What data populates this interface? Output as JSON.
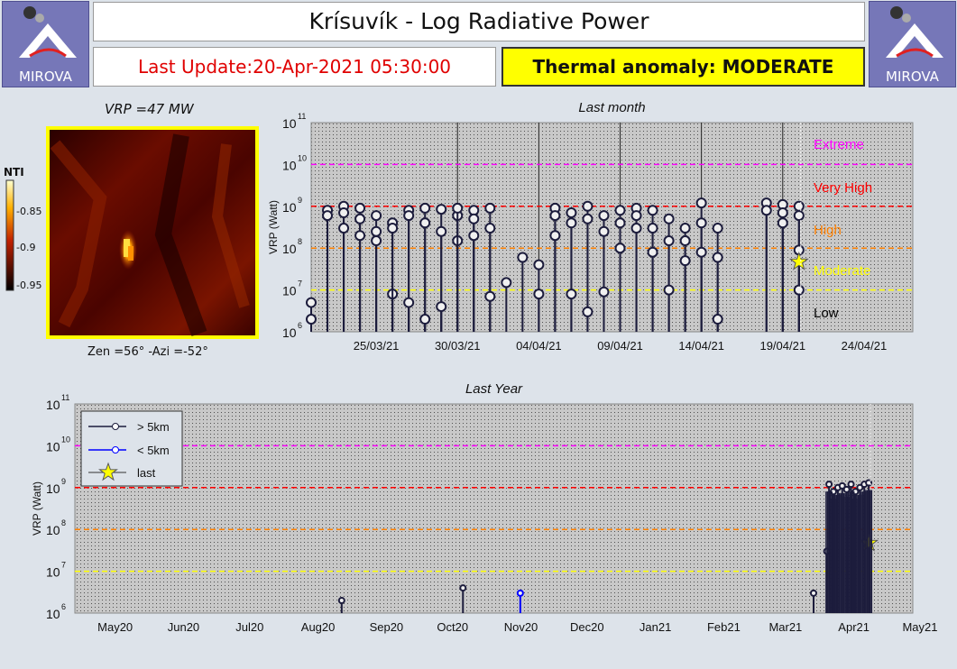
{
  "header": {
    "title": "Krísuvík - Log Radiative Power",
    "last_update": "Last Update:20-Apr-2021 05:30:00",
    "anomaly": "Thermal anomaly:  MODERATE",
    "logo_text": "MIROVA"
  },
  "thermal_image": {
    "vrp_label": "VRP =47 MW",
    "angles_label": "Zen =56° -Azi =-52°",
    "colorbar_title": "NTI",
    "colorbar_ticks": [
      "-0.85",
      "-0.9",
      "-0.95"
    ]
  },
  "colors": {
    "extreme": "#ff00ff",
    "very_high": "#ff0000",
    "high": "#ff8000",
    "moderate": "#ffff00",
    "low": "#000000",
    "stem_far": "#1c1c3c",
    "stem_near": "#0000ff",
    "star": "#ffff00",
    "anomaly_bg": "#ffff00"
  },
  "chart_data": [
    {
      "type": "scatter",
      "title": "Last month",
      "ylabel": "VRP (Watt)",
      "yscale": "log",
      "y_exponent_ticks": [
        6,
        7,
        8,
        9,
        10,
        11
      ],
      "ylim": [
        1000000,
        100000000000
      ],
      "xlim": [
        "2021-03-21",
        "2021-04-27"
      ],
      "x_tick_labels": [
        "25/03/21",
        "30/03/21",
        "04/04/21",
        "09/04/21",
        "14/04/21",
        "19/04/21",
        "24/04/21"
      ],
      "threshold_labels": [
        "Extreme",
        "Very High",
        "High",
        "Moderate",
        "Low"
      ],
      "thresholds": [
        10000000000,
        1000000000,
        100000000,
        10000000
      ],
      "series_far": [
        [
          "2021-03-21",
          5000000
        ],
        [
          "2021-03-21",
          2000000
        ],
        [
          "2021-03-22",
          800000000
        ],
        [
          "2021-03-22",
          600000000
        ],
        [
          "2021-03-23",
          1000000000
        ],
        [
          "2021-03-23",
          700000000
        ],
        [
          "2021-03-23",
          300000000
        ],
        [
          "2021-03-24",
          900000000
        ],
        [
          "2021-03-24",
          500000000
        ],
        [
          "2021-03-24",
          200000000
        ],
        [
          "2021-03-25",
          600000000
        ],
        [
          "2021-03-25",
          250000000
        ],
        [
          "2021-03-25",
          150000000
        ],
        [
          "2021-03-26",
          400000000
        ],
        [
          "2021-03-26",
          8000000
        ],
        [
          "2021-03-26",
          300000000
        ],
        [
          "2021-03-27",
          800000000
        ],
        [
          "2021-03-27",
          600000000
        ],
        [
          "2021-03-27",
          5000000
        ],
        [
          "2021-03-28",
          900000000
        ],
        [
          "2021-03-28",
          400000000
        ],
        [
          "2021-03-28",
          2000000
        ],
        [
          "2021-03-29",
          850000000
        ],
        [
          "2021-03-29",
          250000000
        ],
        [
          "2021-03-29",
          4000000
        ],
        [
          "2021-03-30",
          600000000
        ],
        [
          "2021-03-30",
          150000000
        ],
        [
          "2021-03-30",
          900000000
        ],
        [
          "2021-03-31",
          800000000
        ],
        [
          "2021-03-31",
          500000000
        ],
        [
          "2021-03-31",
          200000000
        ],
        [
          "2021-04-01",
          900000000
        ],
        [
          "2021-04-01",
          300000000
        ],
        [
          "2021-04-01",
          7000000
        ],
        [
          "2021-04-02",
          15000000
        ],
        [
          "2021-04-03",
          60000000
        ],
        [
          "2021-04-04",
          40000000
        ],
        [
          "2021-04-04",
          8000000
        ],
        [
          "2021-04-05",
          900000000
        ],
        [
          "2021-04-05",
          600000000
        ],
        [
          "2021-04-05",
          200000000
        ],
        [
          "2021-04-06",
          700000000
        ],
        [
          "2021-04-06",
          400000000
        ],
        [
          "2021-04-06",
          8000000
        ],
        [
          "2021-04-07",
          1000000000
        ],
        [
          "2021-04-07",
          500000000
        ],
        [
          "2021-04-07",
          3000000
        ],
        [
          "2021-04-08",
          600000000
        ],
        [
          "2021-04-08",
          250000000
        ],
        [
          "2021-04-08",
          9000000
        ],
        [
          "2021-04-09",
          800000000
        ],
        [
          "2021-04-09",
          400000000
        ],
        [
          "2021-04-09",
          100000000
        ],
        [
          "2021-04-10",
          900000000
        ],
        [
          "2021-04-10",
          600000000
        ],
        [
          "2021-04-10",
          300000000
        ],
        [
          "2021-04-11",
          800000000
        ],
        [
          "2021-04-11",
          300000000
        ],
        [
          "2021-04-11",
          80000000
        ],
        [
          "2021-04-12",
          500000000
        ],
        [
          "2021-04-12",
          150000000
        ],
        [
          "2021-04-12",
          10000000
        ],
        [
          "2021-04-13",
          300000000
        ],
        [
          "2021-04-13",
          150000000
        ],
        [
          "2021-04-13",
          50000000
        ],
        [
          "2021-04-14",
          1200000000
        ],
        [
          "2021-04-14",
          400000000
        ],
        [
          "2021-04-14",
          80000000
        ],
        [
          "2021-04-15",
          300000000
        ],
        [
          "2021-04-15",
          60000000
        ],
        [
          "2021-04-15",
          2000000
        ],
        [
          "2021-04-18",
          1200000000
        ],
        [
          "2021-04-18",
          800000000
        ],
        [
          "2021-04-19",
          1100000000
        ],
        [
          "2021-04-19",
          700000000
        ],
        [
          "2021-04-19",
          400000000
        ],
        [
          "2021-04-20",
          1000000000
        ],
        [
          "2021-04-20",
          600000000
        ],
        [
          "2021-04-20",
          90000000
        ],
        [
          "2021-04-20",
          10000000
        ]
      ],
      "last_point": [
        "2021-04-20",
        47000000
      ]
    },
    {
      "type": "scatter",
      "title": "Last Year",
      "ylabel": "VRP (Watt)",
      "yscale": "log",
      "y_exponent_ticks": [
        6,
        7,
        8,
        9,
        10,
        11
      ],
      "ylim": [
        1000000,
        100000000000
      ],
      "xlim": [
        "2020-04-25",
        "2021-05-10"
      ],
      "x_tick_labels": [
        "May20",
        "Jun20",
        "Jul20",
        "Aug20",
        "Sep20",
        "Oct20",
        "Nov20",
        "Dec20",
        "Jan21",
        "Feb21",
        "Mar21",
        "Apr21",
        "May21"
      ],
      "thresholds": [
        10000000000,
        1000000000,
        100000000,
        10000000
      ],
      "legend": [
        "> 5km",
        "< 5km",
        "last"
      ],
      "legend_position": "top-left",
      "series_far": [
        [
          "2020-08-24",
          2000000
        ],
        [
          "2020-10-18",
          4000000
        ],
        [
          "2021-03-26",
          3000000
        ],
        [
          "2021-04-01",
          30000000
        ],
        [
          "2021-04-02",
          1200000000
        ],
        [
          "2021-04-04",
          800000000
        ],
        [
          "2021-04-06",
          1000000000
        ],
        [
          "2021-04-08",
          1100000000
        ],
        [
          "2021-04-10",
          900000000
        ],
        [
          "2021-04-12",
          1200000000
        ],
        [
          "2021-04-14",
          800000000
        ],
        [
          "2021-04-16",
          1000000000
        ],
        [
          "2021-04-18",
          1200000000
        ],
        [
          "2021-04-20",
          1300000000
        ]
      ],
      "series_near": [
        [
          "2020-11-13",
          3000000
        ]
      ],
      "last_point": [
        "2021-04-20",
        47000000
      ]
    }
  ]
}
